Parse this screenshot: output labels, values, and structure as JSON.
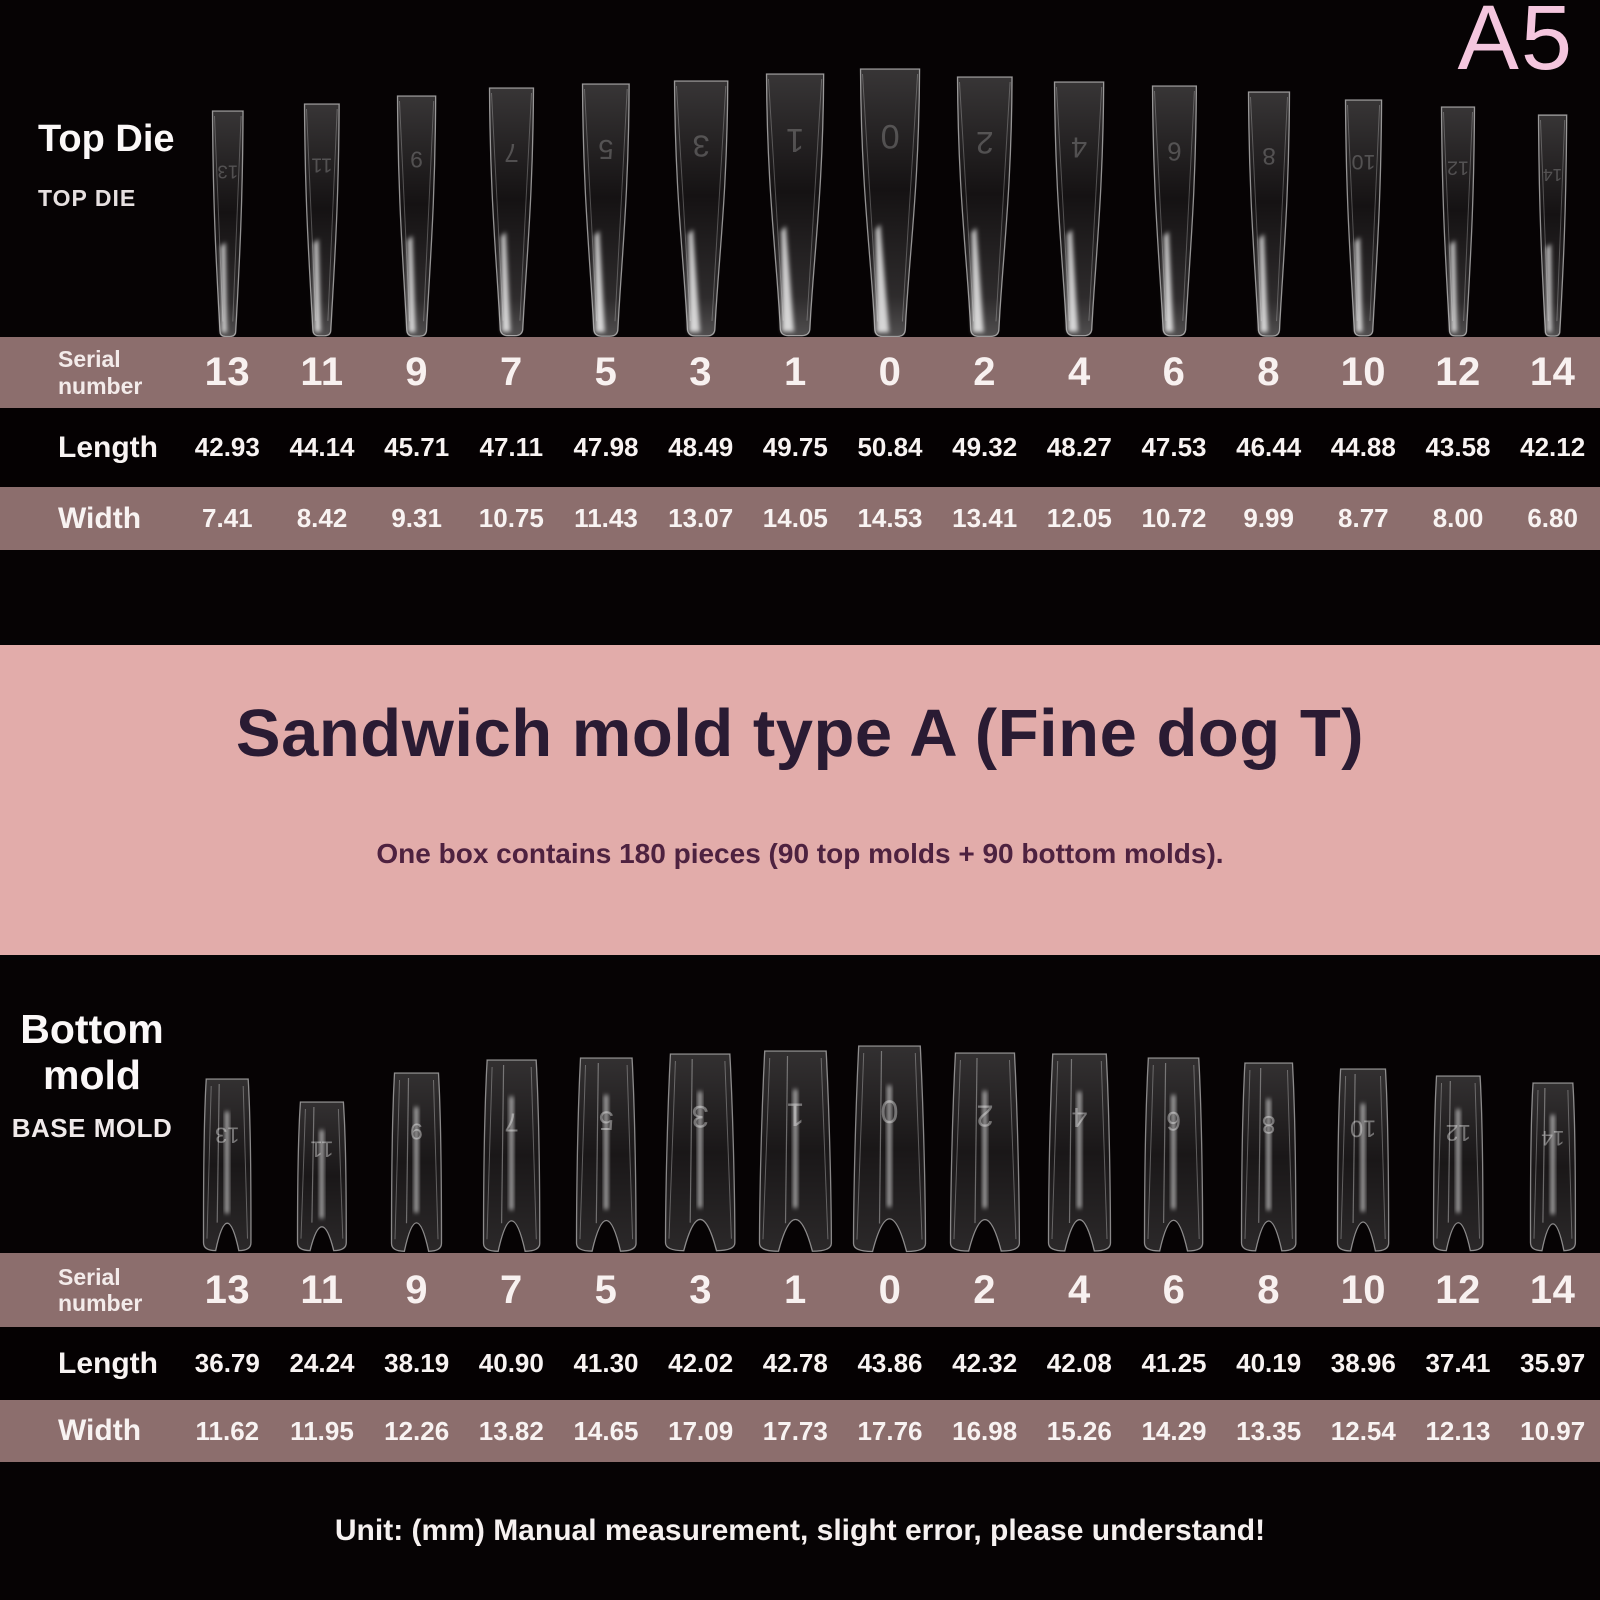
{
  "page": {
    "code": "A5"
  },
  "colors": {
    "bg_black": "#060304",
    "row_black": "#050102",
    "row_mauve": "#8c6e6d",
    "banner_pink": "#e2acaa",
    "banner_title": "#2a1b33",
    "banner_subtitle": "#4e2240",
    "code_pink": "#f4c6de",
    "text_white": "#f7f2f1"
  },
  "top_section": {
    "label_main": "Top Die",
    "label_sub": "TOP DIE"
  },
  "bottom_section": {
    "label_main": "Bottom mold",
    "label_sub": "BASE MOLD"
  },
  "banner": {
    "title": "Sandwich mold type A (Fine dog T)",
    "subtitle": "One box contains 180 pieces (90 top molds + 90 bottom molds)."
  },
  "footer": {
    "note": "Unit: (mm) Manual measurement, slight error, please understand!"
  },
  "top_table": {
    "serial_label": "Serial number",
    "length_label": "Length",
    "width_label": "Width",
    "serials": [
      "13",
      "11",
      "9",
      "7",
      "5",
      "3",
      "1",
      "0",
      "2",
      "4",
      "6",
      "8",
      "10",
      "12",
      "14"
    ],
    "lengths": [
      "42.93",
      "44.14",
      "45.71",
      "47.11",
      "47.98",
      "48.49",
      "49.75",
      "50.84",
      "49.32",
      "48.27",
      "47.53",
      "46.44",
      "44.88",
      "43.58",
      "42.12"
    ],
    "widths": [
      "7.41",
      "8.42",
      "9.31",
      "10.75",
      "11.43",
      "13.07",
      "14.05",
      "14.53",
      "13.41",
      "12.05",
      "10.72",
      "9.99",
      "8.77",
      "8.00",
      "6.80"
    ]
  },
  "bottom_table": {
    "serial_label": "Serial number",
    "length_label": "Length",
    "width_label": "Width",
    "serials": [
      "13",
      "11",
      "9",
      "7",
      "5",
      "3",
      "1",
      "0",
      "2",
      "4",
      "6",
      "8",
      "10",
      "12",
      "14"
    ],
    "lengths": [
      "36.79",
      "24.24",
      "38.19",
      "40.90",
      "41.30",
      "42.02",
      "42.78",
      "43.86",
      "42.32",
      "42.08",
      "41.25",
      "40.19",
      "38.96",
      "37.41",
      "35.97"
    ],
    "widths": [
      "11.62",
      "11.95",
      "12.26",
      "13.82",
      "14.65",
      "17.09",
      "17.73",
      "17.76",
      "16.98",
      "15.26",
      "14.29",
      "13.35",
      "12.54",
      "12.13",
      "10.97"
    ]
  }
}
